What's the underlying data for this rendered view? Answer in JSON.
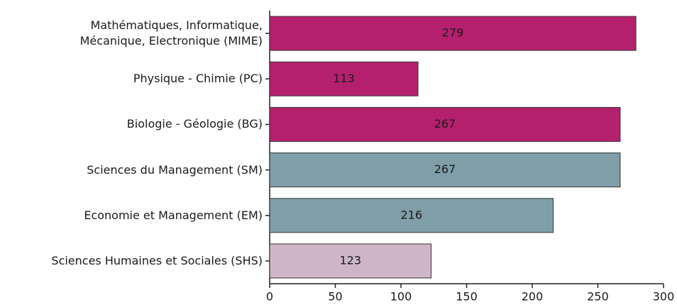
{
  "chart_data": {
    "type": "bar",
    "orientation": "horizontal",
    "categories": [
      "Mathématiques, Informatique,\nMécanique, Electronique (MIME)",
      "Physique - Chimie (PC)",
      "Biologie - Géologie (BG)",
      "Sciences du Management (SM)",
      "Economie et Management (EM)",
      "Sciences Humaines et Sociales (SHS)"
    ],
    "values": [
      279,
      113,
      267,
      267,
      216,
      123
    ],
    "colors": [
      "#b5206e",
      "#b5206e",
      "#b5206e",
      "#7f9ea8",
      "#7f9ea8",
      "#cfb6c6"
    ],
    "value_label_colors": [
      "#ffffff",
      "#ffffff",
      "#ffffff",
      "#1a1a1a",
      "#1a1a1a",
      "#1a1a1a"
    ],
    "xlim": [
      0,
      300
    ],
    "xticks": [
      0,
      50,
      100,
      150,
      200,
      250,
      300
    ]
  }
}
